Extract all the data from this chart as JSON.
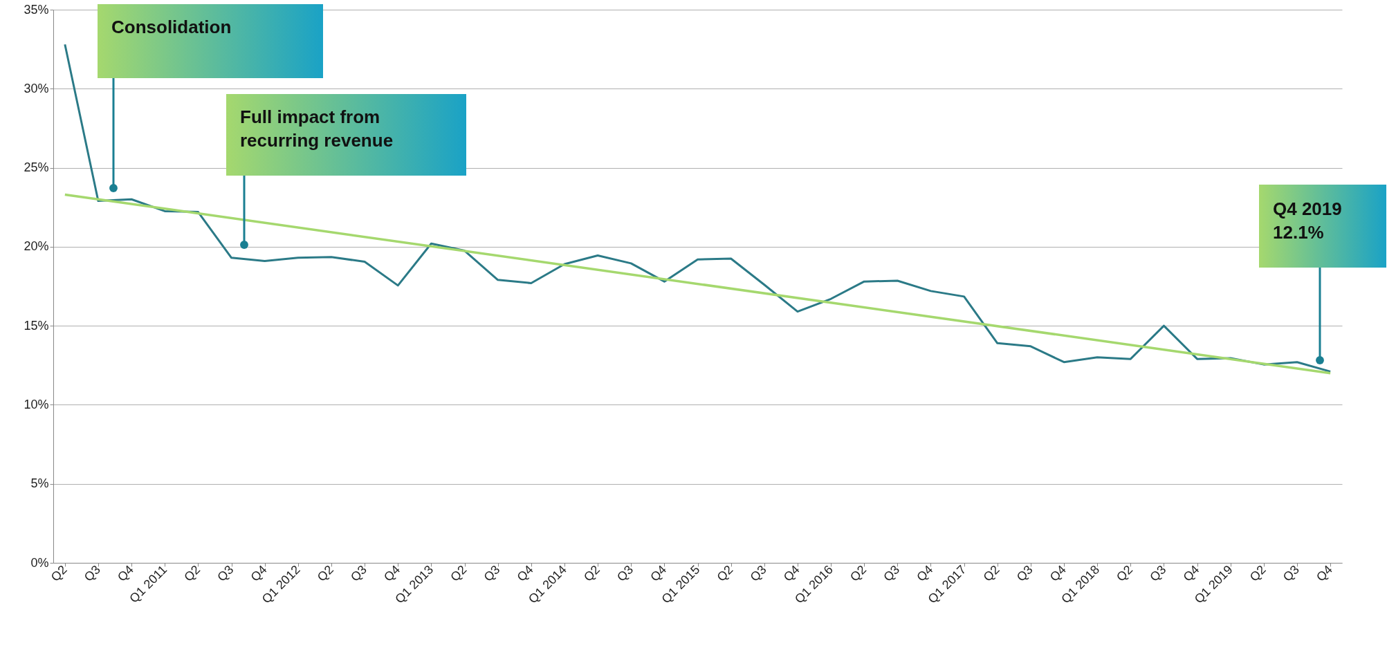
{
  "chart_data": {
    "type": "line",
    "categories": [
      "Q2",
      "Q3",
      "Q4",
      "Q1 2011",
      "Q2",
      "Q3",
      "Q4",
      "Q1 2012",
      "Q2",
      "Q3",
      "Q4",
      "Q1 2013",
      "Q2",
      "Q3",
      "Q4",
      "Q1 2014",
      "Q2",
      "Q3",
      "Q4",
      "Q1 2015",
      "Q2",
      "Q3",
      "Q4",
      "Q1 2016",
      "Q2",
      "Q3",
      "Q4",
      "Q1 2017",
      "Q2",
      "Q3",
      "Q4",
      "Q1 2018",
      "Q2",
      "Q3",
      "Q4",
      "Q1 2019",
      "Q2",
      "Q3",
      "Q4"
    ],
    "series": [
      {
        "color": "#2b7a87",
        "values": [
          32.8,
          22.9,
          23.0,
          22.25,
          22.2,
          19.3,
          19.1,
          19.3,
          19.35,
          19.05,
          17.55,
          20.2,
          19.75,
          17.9,
          17.7,
          18.9,
          19.45,
          18.95,
          17.8,
          19.2,
          19.25,
          17.6,
          15.9,
          16.7,
          17.8,
          17.85,
          17.2,
          16.85,
          13.9,
          13.7,
          12.7,
          13.0,
          12.9,
          15.0,
          12.9,
          12.95,
          12.55,
          12.7,
          12.1
        ]
      },
      {
        "color": "#a5d86e",
        "values": [
          23.3,
          null,
          null,
          null,
          null,
          null,
          null,
          null,
          null,
          null,
          null,
          null,
          null,
          null,
          null,
          null,
          null,
          null,
          null,
          null,
          null,
          null,
          null,
          null,
          null,
          null,
          null,
          null,
          null,
          null,
          null,
          null,
          null,
          null,
          null,
          null,
          null,
          null,
          12.0
        ]
      }
    ],
    "ylim": [
      0,
      35
    ],
    "yticks": [
      {
        "value": 0,
        "label": "0%"
      },
      {
        "value": 5,
        "label": "5%"
      },
      {
        "value": 10,
        "label": "10%"
      },
      {
        "value": 15,
        "label": "15%"
      },
      {
        "value": 20,
        "label": "20%"
      },
      {
        "value": 25,
        "label": "25%"
      },
      {
        "value": 30,
        "label": "30%"
      },
      {
        "value": 35,
        "label": "35%"
      }
    ],
    "grid": "y",
    "marker": "none",
    "line_style": "solid",
    "annotations": [
      "Consolidation",
      "Full impact from\nrecurring revenue",
      "Q4 2019\n12.1%"
    ]
  }
}
